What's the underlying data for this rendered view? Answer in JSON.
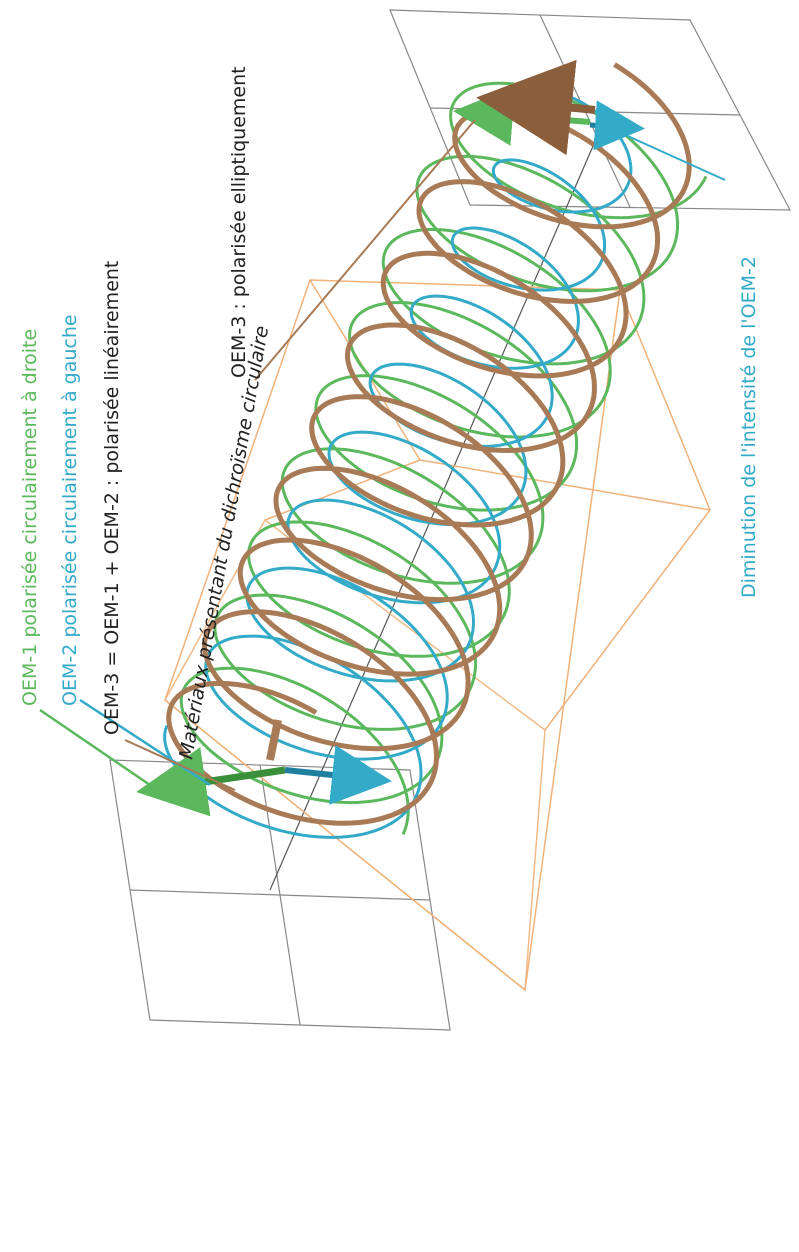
{
  "labels": {
    "oem1": "OEM-1 polarisée circulairement à droite",
    "oem2": "OEM-2 polarisée circulairement à gauche",
    "oem3_linear": "OEM-3 = OEM-1 + OEM-2 : polarisée linéairement",
    "material": "Matériaux présentant du dichroïsme circulaire",
    "oem3_elliptic": "OEM-3 : polarisée elliptiquement",
    "intensity": "Diminution de l'intensité de l'OEM-2"
  },
  "colors": {
    "oem1": "#5cb85c",
    "oem2": "#33aac8",
    "oem3": "#a87a55",
    "material_box": "#f0b27a",
    "plane": "#777777",
    "text_dark": "#222222"
  }
}
